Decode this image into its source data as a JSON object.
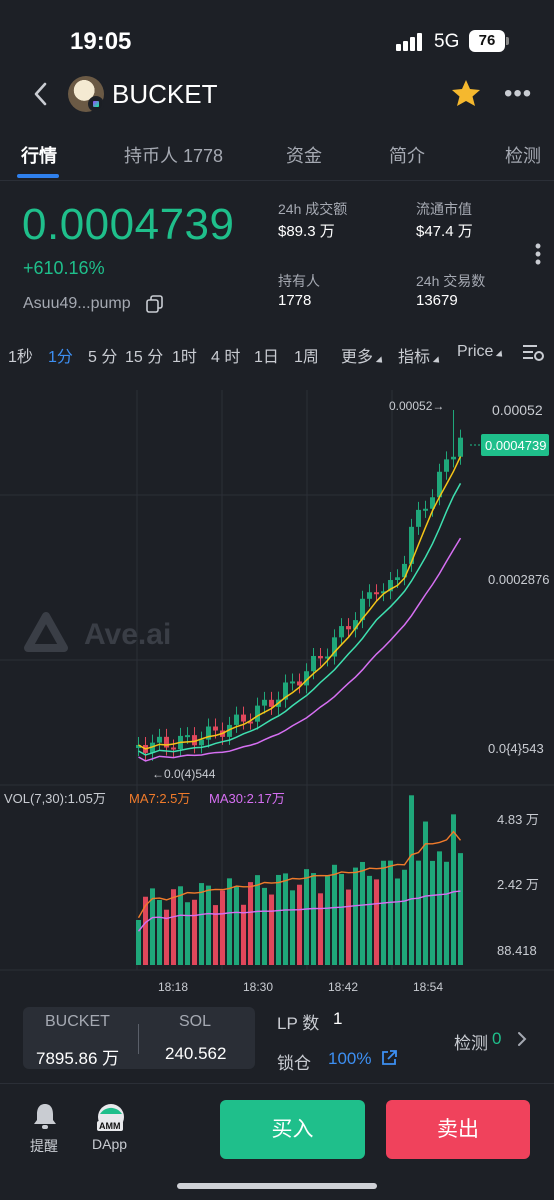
{
  "status_bar": {
    "time": "19:05",
    "network": "5G",
    "battery": "76"
  },
  "header": {
    "title": "BUCKET",
    "avatar_icon": "token-avatar",
    "favorite_icon": "star-icon",
    "more_icon": "more-icon"
  },
  "tabs": [
    {
      "label": "行情",
      "active": true
    },
    {
      "label": "持币人 1778"
    },
    {
      "label": "资金"
    },
    {
      "label": "简介"
    },
    {
      "label": "检测"
    }
  ],
  "summary": {
    "price": "0.0004739",
    "change": "+610.16%",
    "address": "Asuu49...pump",
    "stats": [
      {
        "label": "24h 成交额",
        "value": "$89.3 万"
      },
      {
        "label": "流通市值",
        "value": "$47.4 万"
      },
      {
        "label": "持有人",
        "value": "1778"
      },
      {
        "label": "24h 交易数",
        "value": "13679"
      }
    ]
  },
  "timeframes": [
    {
      "label": "1秒"
    },
    {
      "label": "1分",
      "active": true
    },
    {
      "label": "5 分"
    },
    {
      "label": "15 分"
    },
    {
      "label": "1时"
    },
    {
      "label": "4 时"
    },
    {
      "label": "1日"
    },
    {
      "label": "1周"
    },
    {
      "label": "更多"
    },
    {
      "label": "指标"
    },
    {
      "label": "Price"
    }
  ],
  "chart": {
    "watermark": "Ave.ai",
    "price_labels": [
      "0.00052",
      "0.0002876",
      "0.0{4}543"
    ],
    "current_price_tag": "0.0004739",
    "high_marker": "0.00052→",
    "low_marker": "←0.0(4)544",
    "vol_legend": {
      "vol": "VOL(7,30):1.05万",
      "ma7": "MA7:2.5万",
      "ma30": "MA30:2.17万"
    },
    "vol_labels": [
      "4.83 万",
      "2.42 万",
      "88.418"
    ],
    "time_labels": [
      "18:18",
      "18:30",
      "18:42",
      "18:54"
    ],
    "colors": {
      "up": "#1fa77a",
      "down": "#e0475b",
      "ma_yellow": "#f5c518",
      "ma_green": "#3ee0b0",
      "ma_purple": "#d66ff2",
      "vol_ma7": "#f07b2b",
      "vol_ma30": "#d66ff2"
    }
  },
  "bottom": {
    "pair": [
      {
        "label": "BUCKET",
        "value": "7895.86 万"
      },
      {
        "label": "SOL",
        "value": "240.562"
      }
    ],
    "lp_label": "LP 数",
    "lp_value": "1",
    "lock_label": "锁仓",
    "lock_value": "100%",
    "check_label": "检测",
    "check_value": "0"
  },
  "nav": {
    "alert_label": "提醒",
    "dapp_label": "DApp",
    "amm_badge": "AMM",
    "buy_label": "买入",
    "sell_label": "卖出"
  }
}
